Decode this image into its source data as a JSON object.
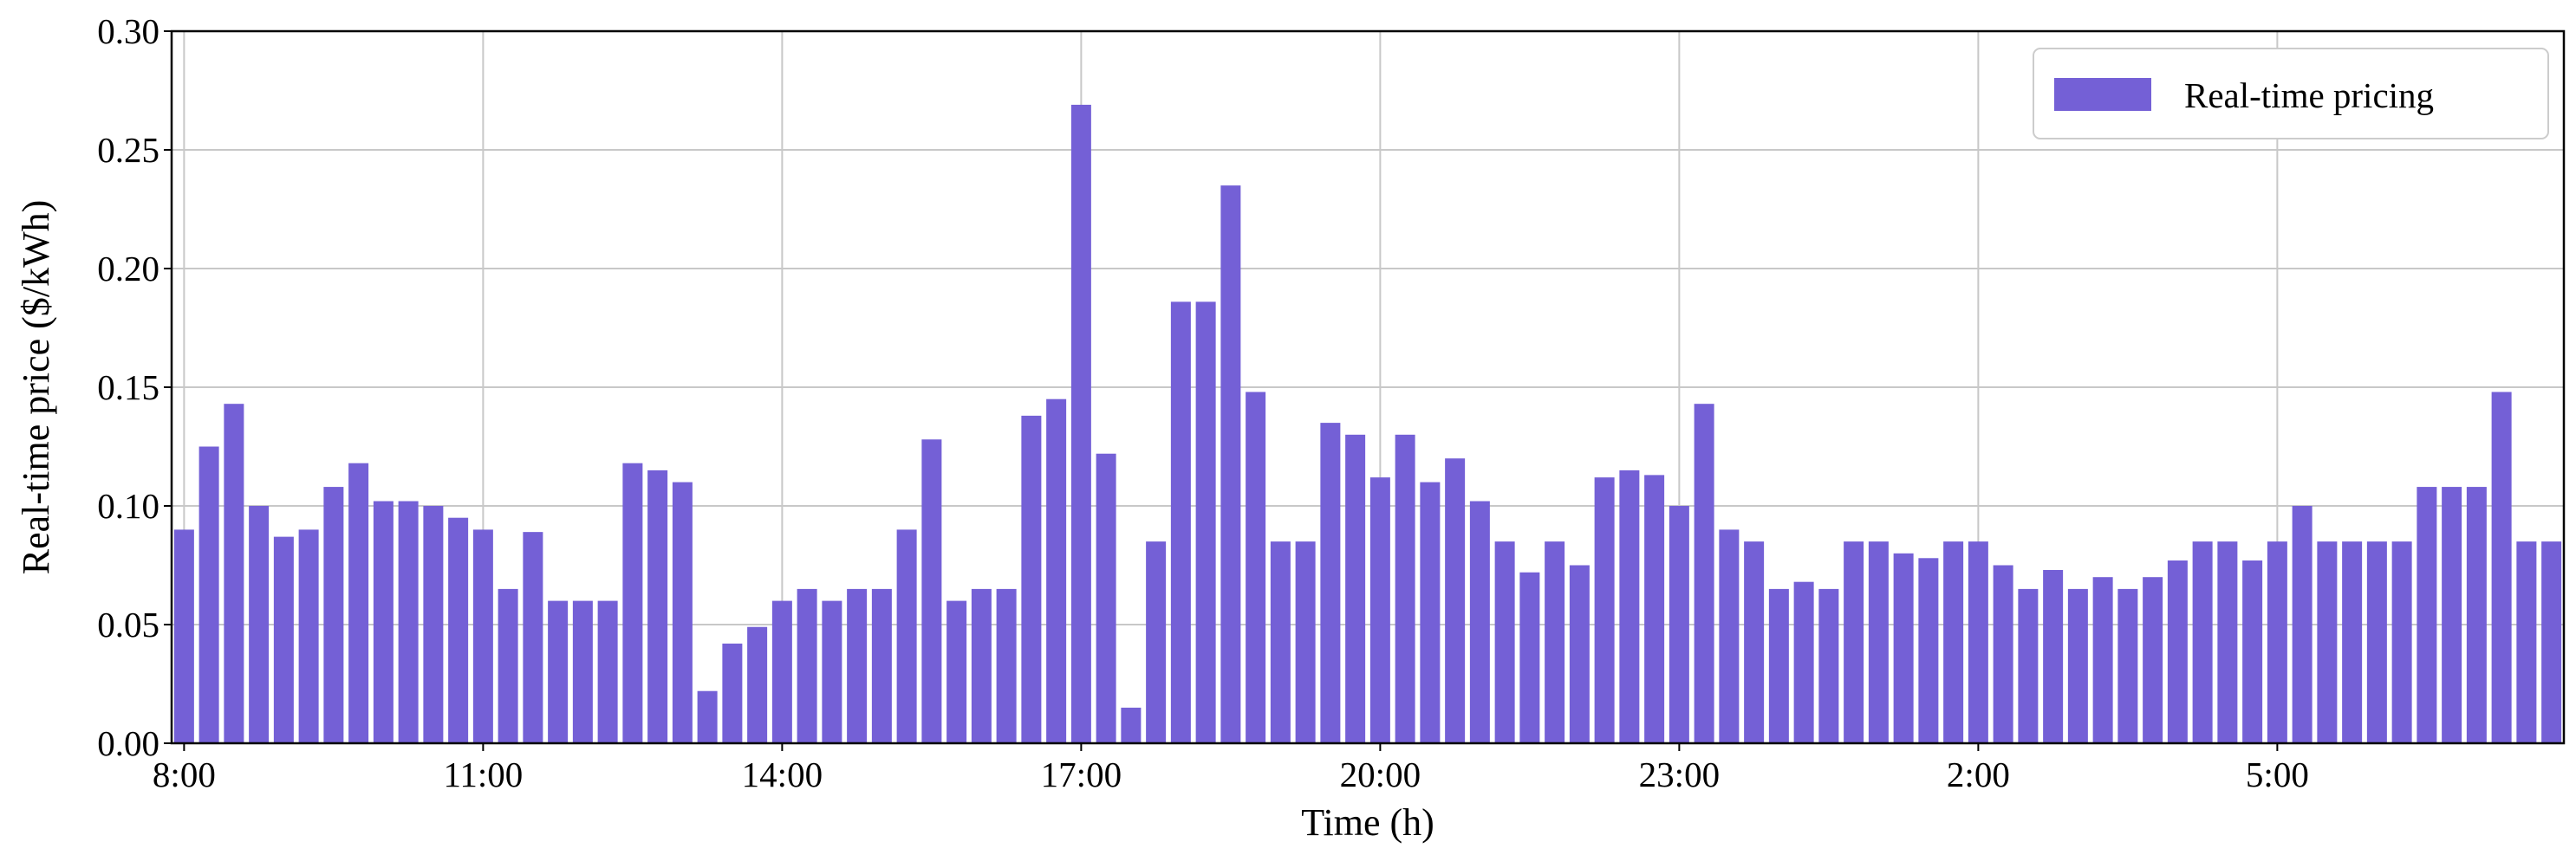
{
  "chart_data": {
    "type": "bar",
    "xlabel": "Time (h)",
    "ylabel": "Real-time price ($/kWh)",
    "ylim": [
      0,
      0.3
    ],
    "y_ticks": [
      "0.00",
      "0.05",
      "0.10",
      "0.15",
      "0.20",
      "0.25",
      "0.30"
    ],
    "x_ticks": [
      "8:00",
      "11:00",
      "14:00",
      "17:00",
      "20:00",
      "23:00",
      "2:00",
      "5:00"
    ],
    "x_tick_interval_bars": 12,
    "interval_minutes": 15,
    "grid": true,
    "legend_position": "top-right",
    "colors": {
      "bar": "#7460d6",
      "grid": "#c8c8c8",
      "frame": "#000000"
    },
    "series": [
      {
        "name": "Real-time pricing",
        "values": [
          0.09,
          0.125,
          0.143,
          0.1,
          0.087,
          0.09,
          0.108,
          0.118,
          0.102,
          0.102,
          0.1,
          0.095,
          0.09,
          0.065,
          0.089,
          0.06,
          0.06,
          0.06,
          0.118,
          0.115,
          0.11,
          0.022,
          0.042,
          0.049,
          0.06,
          0.065,
          0.06,
          0.065,
          0.065,
          0.09,
          0.128,
          0.06,
          0.065,
          0.065,
          0.138,
          0.145,
          0.269,
          0.122,
          0.015,
          0.085,
          0.186,
          0.186,
          0.235,
          0.148,
          0.085,
          0.085,
          0.135,
          0.13,
          0.112,
          0.13,
          0.11,
          0.12,
          0.102,
          0.085,
          0.072,
          0.085,
          0.075,
          0.112,
          0.115,
          0.113,
          0.1,
          0.143,
          0.09,
          0.085,
          0.065,
          0.068,
          0.065,
          0.085,
          0.085,
          0.08,
          0.078,
          0.085,
          0.085,
          0.075,
          0.065,
          0.073,
          0.065,
          0.07,
          0.065,
          0.07,
          0.077,
          0.085,
          0.085,
          0.077,
          0.085,
          0.1,
          0.085,
          0.085,
          0.085,
          0.085,
          0.108,
          0.108,
          0.108,
          0.148,
          0.085,
          0.085
        ]
      }
    ]
  }
}
